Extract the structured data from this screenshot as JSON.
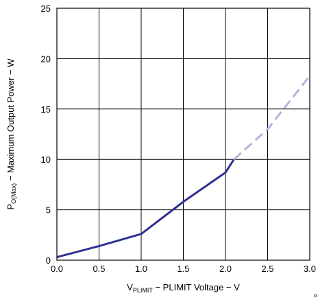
{
  "chart_data": {
    "type": "line",
    "title": "",
    "xlabel": {
      "symbol": "V",
      "subscript": "PLIMIT",
      "rest": " − PLIMIT Voltage − V"
    },
    "ylabel": {
      "symbol": "P",
      "subscript": "O(Max)",
      "rest": " − Maximum Output Power − W"
    },
    "xlim": [
      0,
      3
    ],
    "ylim": [
      0,
      25
    ],
    "x_ticks": [
      "0.0",
      "0.5",
      "1.0",
      "1.5",
      "2.0",
      "2.5",
      "3.0"
    ],
    "y_ticks": [
      "0",
      "5",
      "10",
      "15",
      "20",
      "25"
    ],
    "grid": true,
    "figure_id": "G",
    "series": [
      {
        "style": "solid",
        "color": "#2e3192",
        "x": [
          0.0,
          0.5,
          1.0,
          1.5,
          2.0,
          2.1
        ],
        "y": [
          0.3,
          1.4,
          2.6,
          5.8,
          8.7,
          10.0
        ]
      },
      {
        "style": "dashed",
        "color": "#b3b5dd",
        "x": [
          2.1,
          2.5,
          3.0
        ],
        "y": [
          10.0,
          13.0,
          18.3
        ]
      }
    ]
  }
}
